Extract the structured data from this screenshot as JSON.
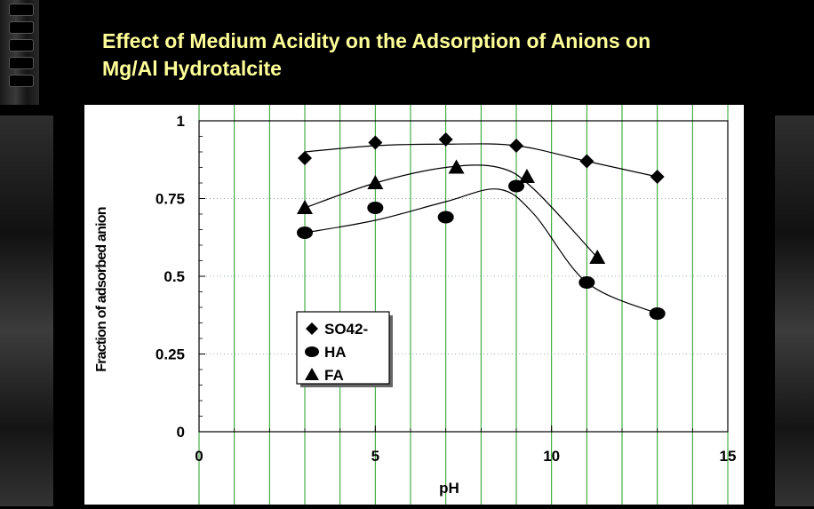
{
  "slide": {
    "title_line1": "Effect of Medium Acidity on the Adsorption of Anions on",
    "title_line2": "Mg/Al Hydrotalcite",
    "title_color": "#ffff99",
    "background_color": "#000000"
  },
  "chart_data": {
    "type": "scatter",
    "title": "",
    "xlabel": "pH",
    "ylabel": "Fraction of adsorbed anion",
    "xlim": [
      0,
      15
    ],
    "ylim": [
      0,
      1
    ],
    "x_ticks": [
      "0",
      "5",
      "10",
      "15"
    ],
    "y_ticks": [
      "0",
      "0.25",
      "0.5",
      "0.75",
      "1"
    ],
    "grid": "vertical green gridlines",
    "legend_position": "lower-left",
    "series": [
      {
        "name": "SO42-",
        "marker": "diamond",
        "points": [
          [
            3,
            0.88
          ],
          [
            5,
            0.93
          ],
          [
            7,
            0.94
          ],
          [
            9,
            0.92
          ],
          [
            11,
            0.87
          ],
          [
            13,
            0.82
          ]
        ]
      },
      {
        "name": "HA",
        "marker": "circle",
        "points": [
          [
            3,
            0.64
          ],
          [
            5,
            0.72
          ],
          [
            7,
            0.69
          ],
          [
            9,
            0.79
          ],
          [
            11,
            0.48
          ],
          [
            13,
            0.38
          ]
        ]
      },
      {
        "name": "FA",
        "marker": "triangle",
        "points": [
          [
            3,
            0.72
          ],
          [
            5,
            0.8
          ],
          [
            7.3,
            0.85
          ],
          [
            9.3,
            0.82
          ],
          [
            11.3,
            0.56
          ]
        ]
      }
    ],
    "fit_curves": [
      {
        "series": "SO42-",
        "points": [
          [
            3,
            0.9
          ],
          [
            5,
            0.92
          ],
          [
            7,
            0.925
          ],
          [
            9,
            0.92
          ],
          [
            11,
            0.87
          ],
          [
            13,
            0.82
          ]
        ]
      },
      {
        "series": "FA",
        "points": [
          [
            3,
            0.72
          ],
          [
            5,
            0.8
          ],
          [
            7,
            0.85
          ],
          [
            8.5,
            0.85
          ],
          [
            9.5,
            0.78
          ],
          [
            11.3,
            0.56
          ]
        ]
      },
      {
        "series": "HA",
        "points": [
          [
            3,
            0.64
          ],
          [
            5,
            0.68
          ],
          [
            7,
            0.74
          ],
          [
            8.5,
            0.78
          ],
          [
            9.5,
            0.7
          ],
          [
            11,
            0.48
          ],
          [
            13,
            0.38
          ]
        ]
      }
    ]
  }
}
